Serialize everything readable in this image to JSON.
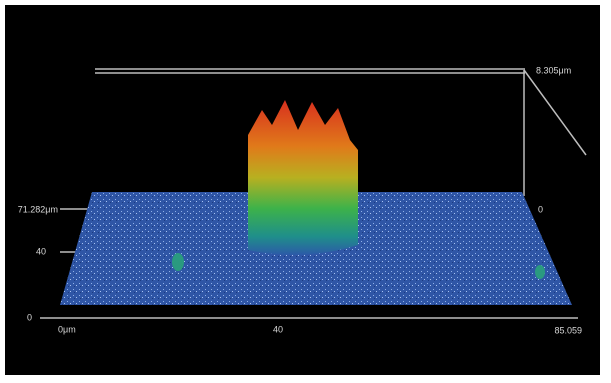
{
  "axis_labels": {
    "z_max": "8.305μm",
    "y_max": "71.282μm",
    "y_mid": "40",
    "y_min": "0",
    "z_min": "0",
    "x_min": "0μm",
    "x_mid": "40",
    "x_max": "85.059"
  }
}
